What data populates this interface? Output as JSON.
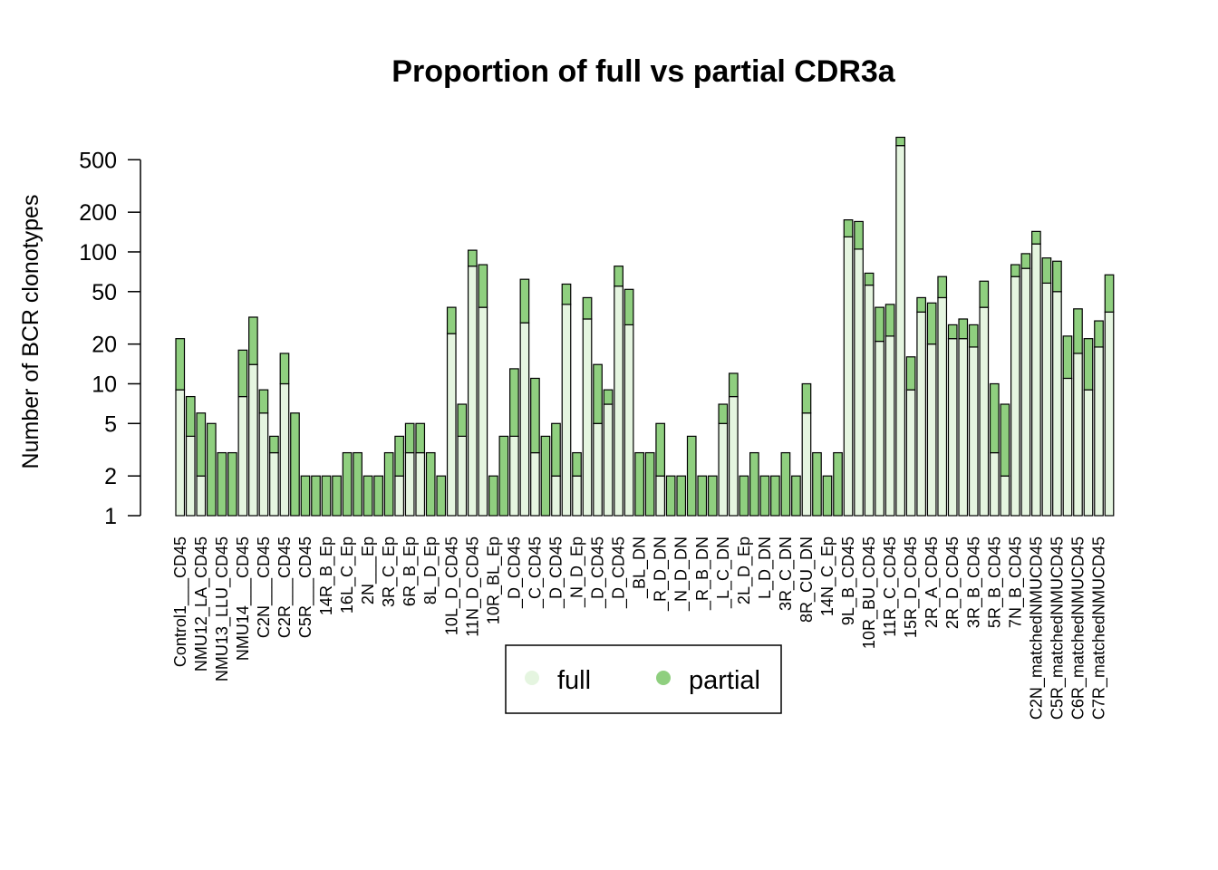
{
  "chart_data": {
    "type": "bar",
    "stacked": true,
    "log_y": true,
    "title": "Proportion of full vs partial CDR3a",
    "ylabel": "Number of BCR clonotypes",
    "xlabel": "",
    "ylim": [
      1,
      700
    ],
    "yticks": [
      1,
      2,
      5,
      10,
      20,
      50,
      100,
      200,
      500
    ],
    "colors": {
      "full": "#e5f5e0",
      "partial": "#8fcf7f",
      "outline": "#000000"
    },
    "legend": {
      "position": "bottom-center",
      "entries": [
        "full",
        "partial"
      ]
    },
    "tick_labels": [
      "Control1___CD45",
      "NMU12_LA_CD45",
      "NMU13_LLU_CD45",
      "NMU14___CD45",
      "C2N___CD45",
      "C2R___CD45",
      "C5R___CD45",
      "14R_B_Ep",
      "16L_C_Ep",
      "2N___Ep",
      "3R_C_Ep",
      "6R_B_Ep",
      "8L_D_Ep",
      "10L_D_CD45",
      "11N_D_CD45",
      "10R_BL_Ep",
      "_D_CD45",
      "_C_CD45",
      "_D_CD45",
      "_N_D_Ep",
      "_D_CD45",
      "_D_CD45",
      "_BL_DN",
      "_R_D_DN",
      "_N_D_DN",
      "_R_B_DN",
      "_L_C_DN",
      "2L_D_Ep",
      "L_D_DN",
      "3R_C_DN",
      "8R_CU_DN",
      "14N_C_Ep",
      "9L_B_CD45",
      "10R_BU_CD45",
      "11R_C_CD45",
      "15R_D_CD45",
      "2R_A_CD45",
      "2R_D_CD45",
      "3R_B_CD45",
      "5R_B_CD45",
      "7N_B_CD45",
      "C2N_matchedNMUCD45",
      "C5R_matchedNMUCD45",
      "C6R_matchedNMUCD45",
      "C7R_matchedNMUCD45"
    ],
    "series": [
      {
        "name": "full",
        "values": [
          9,
          4,
          2,
          1,
          1,
          1,
          8,
          14,
          6,
          3,
          10,
          1,
          1,
          1,
          1,
          1,
          1,
          1,
          1,
          1,
          1,
          2,
          3,
          3,
          1,
          1,
          24,
          4,
          78,
          38,
          1,
          1,
          4,
          29,
          3,
          1,
          2,
          40,
          2,
          31,
          5,
          7,
          55,
          28,
          1,
          1,
          2,
          1,
          1,
          1,
          1,
          1,
          5,
          8,
          1,
          1,
          1,
          1,
          1,
          1,
          6,
          1,
          1,
          1,
          130,
          105,
          56,
          21,
          23,
          640,
          9,
          35,
          20,
          45,
          22,
          22,
          19,
          38,
          3,
          2,
          65,
          75,
          115,
          58,
          50,
          11,
          17,
          9,
          19,
          35
        ]
      },
      {
        "name": "partial",
        "values": [
          13,
          4,
          4,
          4,
          2,
          2,
          10,
          18,
          3,
          1,
          7,
          5,
          1,
          1,
          1,
          1,
          2,
          2,
          1,
          1,
          2,
          2,
          2,
          2,
          2,
          1,
          14,
          3,
          25,
          42,
          1,
          3,
          9,
          33,
          8,
          3,
          3,
          17,
          1,
          14,
          9,
          2,
          23,
          24,
          2,
          2,
          3,
          1,
          1,
          3,
          1,
          1,
          2,
          4,
          1,
          2,
          1,
          1,
          2,
          1,
          4,
          2,
          1,
          2,
          45,
          65,
          13,
          17,
          17,
          100,
          7,
          10,
          21,
          20,
          6,
          9,
          9,
          22,
          7,
          5,
          15,
          22,
          28,
          32,
          35,
          12,
          20,
          13,
          11,
          32
        ]
      }
    ]
  }
}
